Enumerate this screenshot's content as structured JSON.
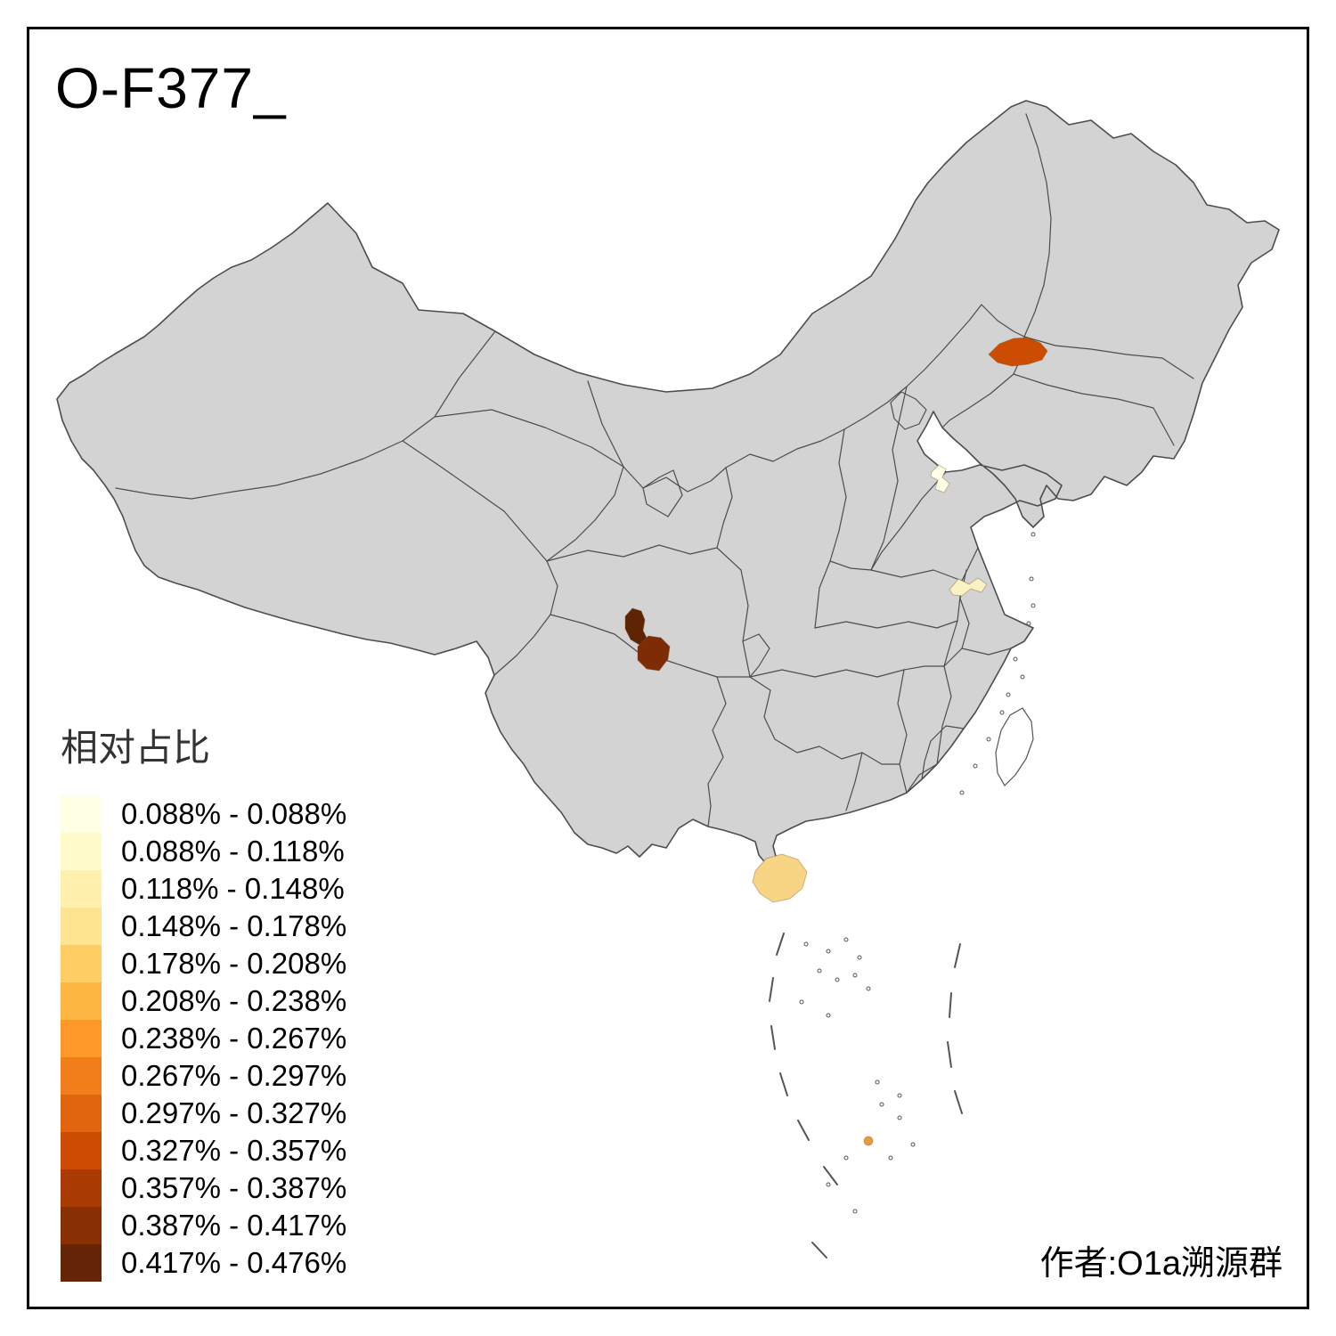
{
  "header": {
    "title": "O-F377_"
  },
  "legend": {
    "title": "相对占比",
    "items": [
      {
        "color": "#FFFFE5",
        "label": "0.088% - 0.088%"
      },
      {
        "color": "#FFFACA",
        "label": "0.088% - 0.118%"
      },
      {
        "color": "#FFF0AE",
        "label": "0.118% - 0.148%"
      },
      {
        "color": "#FEE391",
        "label": "0.148% - 0.178%"
      },
      {
        "color": "#FECE65",
        "label": "0.178% - 0.208%"
      },
      {
        "color": "#FEB642",
        "label": "0.208% - 0.238%"
      },
      {
        "color": "#FE9929",
        "label": "0.238% - 0.267%"
      },
      {
        "color": "#F27E1B",
        "label": "0.267% - 0.297%"
      },
      {
        "color": "#E1640E",
        "label": "0.297% - 0.327%"
      },
      {
        "color": "#CC4C02",
        "label": "0.327% - 0.357%"
      },
      {
        "color": "#AA3C03",
        "label": "0.357% - 0.387%"
      },
      {
        "color": "#882F05",
        "label": "0.387% - 0.417%"
      },
      {
        "color": "#662506",
        "label": "0.417% - 0.476%"
      }
    ]
  },
  "attribution": {
    "text": "作者:O1a溯源群"
  },
  "map": {
    "background": "#FFFFFF",
    "base_fill": "#D3D3D3",
    "border_color": "#4D4D4D",
    "island_outline": "#555555",
    "frame_color": "#000000",
    "regions": [
      {
        "id": "northeast_highlight",
        "color": "#CC4C02"
      },
      {
        "id": "shandong_highlight",
        "color": "#FFFFE5"
      },
      {
        "id": "jiangsu_highlight",
        "color": "#FBF2C4"
      },
      {
        "id": "sichuan_west_highlight",
        "color": "#5E2404"
      },
      {
        "id": "sichuan_east_highlight",
        "color": "#7E2C05"
      },
      {
        "id": "hainan_island",
        "color": "#F8D584"
      },
      {
        "id": "south_sea_islet",
        "color": "#E89A3C"
      }
    ]
  }
}
